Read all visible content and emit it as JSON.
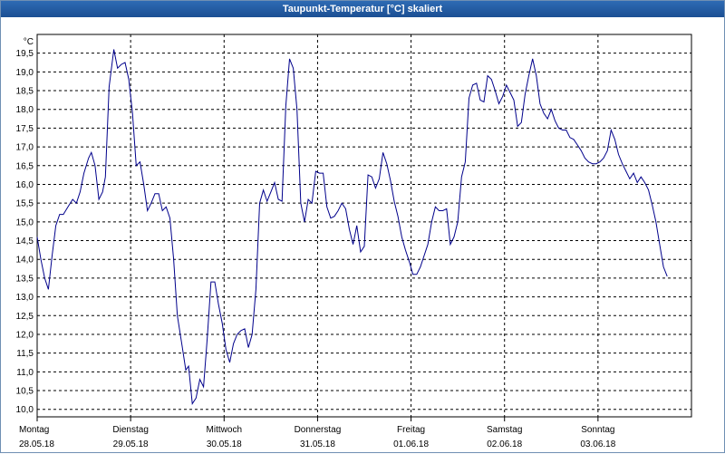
{
  "window": {
    "title": "Taupunkt-Temperatur [°C] skaliert"
  },
  "colors": {
    "line": "#00008b",
    "grid": "#000000",
    "axis": "#000000"
  },
  "chart_data": {
    "type": "line",
    "title": "Taupunkt-Temperatur [°C] skaliert",
    "unit": "°C",
    "ylim": [
      9.8,
      20.0
    ],
    "yticks": [
      "10,0",
      "10,5",
      "11,0",
      "11,5",
      "12,0",
      "12,5",
      "13,0",
      "13,5",
      "14,0",
      "14,5",
      "15,0",
      "15,5",
      "16,0",
      "16,5",
      "17,0",
      "17,5",
      "18,0",
      "18,5",
      "19,0",
      "19,5"
    ],
    "xlim": [
      0,
      7
    ],
    "x_days": [
      {
        "day": "Montag",
        "date": "28.05.18"
      },
      {
        "day": "Dienstag",
        "date": "29.05.18"
      },
      {
        "day": "Mittwoch",
        "date": "30.05.18"
      },
      {
        "day": "Donnerstag",
        "date": "31.05.18"
      },
      {
        "day": "Freitag",
        "date": "01.06.18"
      },
      {
        "day": "Samstag",
        "date": "02.06.18"
      },
      {
        "day": "Sonntag",
        "date": "03.06.18"
      }
    ],
    "grid": true,
    "series": [
      {
        "points": [
          [
            0.0,
            14.6
          ],
          [
            0.04,
            14.0
          ],
          [
            0.08,
            13.5
          ],
          [
            0.12,
            13.2
          ],
          [
            0.16,
            14.1
          ],
          [
            0.2,
            14.9
          ],
          [
            0.24,
            15.2
          ],
          [
            0.28,
            15.2
          ],
          [
            0.33,
            15.4
          ],
          [
            0.38,
            15.6
          ],
          [
            0.42,
            15.5
          ],
          [
            0.46,
            15.8
          ],
          [
            0.5,
            16.3
          ],
          [
            0.55,
            16.7
          ],
          [
            0.58,
            16.85
          ],
          [
            0.62,
            16.5
          ],
          [
            0.66,
            15.6
          ],
          [
            0.7,
            15.8
          ],
          [
            0.73,
            16.2
          ],
          [
            0.77,
            18.6
          ],
          [
            0.82,
            19.6
          ],
          [
            0.86,
            19.1
          ],
          [
            0.9,
            19.2
          ],
          [
            0.94,
            19.25
          ],
          [
            0.98,
            18.8
          ],
          [
            1.02,
            17.9
          ],
          [
            1.06,
            16.5
          ],
          [
            1.1,
            16.6
          ],
          [
            1.14,
            16.0
          ],
          [
            1.18,
            15.3
          ],
          [
            1.22,
            15.5
          ],
          [
            1.26,
            15.75
          ],
          [
            1.3,
            15.75
          ],
          [
            1.34,
            15.3
          ],
          [
            1.38,
            15.4
          ],
          [
            1.42,
            15.1
          ],
          [
            1.46,
            14.0
          ],
          [
            1.5,
            12.5
          ],
          [
            1.55,
            11.7
          ],
          [
            1.59,
            11.05
          ],
          [
            1.62,
            11.15
          ],
          [
            1.66,
            10.15
          ],
          [
            1.7,
            10.3
          ],
          [
            1.74,
            10.8
          ],
          [
            1.78,
            10.6
          ],
          [
            1.82,
            11.9
          ],
          [
            1.86,
            13.4
          ],
          [
            1.9,
            13.4
          ],
          [
            1.94,
            12.8
          ],
          [
            1.98,
            12.3
          ],
          [
            2.02,
            11.6
          ],
          [
            2.06,
            11.25
          ],
          [
            2.1,
            11.75
          ],
          [
            2.14,
            12.0
          ],
          [
            2.18,
            12.1
          ],
          [
            2.22,
            12.15
          ],
          [
            2.26,
            11.65
          ],
          [
            2.3,
            12.0
          ],
          [
            2.34,
            13.2
          ],
          [
            2.38,
            15.5
          ],
          [
            2.42,
            15.85
          ],
          [
            2.46,
            15.55
          ],
          [
            2.5,
            15.8
          ],
          [
            2.54,
            16.05
          ],
          [
            2.58,
            15.6
          ],
          [
            2.62,
            15.55
          ],
          [
            2.66,
            18.1
          ],
          [
            2.7,
            19.35
          ],
          [
            2.74,
            19.1
          ],
          [
            2.78,
            18.0
          ],
          [
            2.82,
            15.5
          ],
          [
            2.86,
            15.0
          ],
          [
            2.9,
            15.6
          ],
          [
            2.94,
            15.5
          ],
          [
            2.98,
            16.35
          ],
          [
            3.02,
            16.3
          ],
          [
            3.06,
            16.3
          ],
          [
            3.1,
            15.4
          ],
          [
            3.14,
            15.1
          ],
          [
            3.18,
            15.15
          ],
          [
            3.22,
            15.3
          ],
          [
            3.26,
            15.5
          ],
          [
            3.3,
            15.35
          ],
          [
            3.34,
            14.8
          ],
          [
            3.38,
            14.4
          ],
          [
            3.42,
            14.9
          ],
          [
            3.46,
            14.2
          ],
          [
            3.5,
            14.35
          ],
          [
            3.54,
            16.25
          ],
          [
            3.58,
            16.2
          ],
          [
            3.62,
            15.9
          ],
          [
            3.66,
            16.15
          ],
          [
            3.7,
            16.85
          ],
          [
            3.74,
            16.55
          ],
          [
            3.78,
            16.1
          ],
          [
            3.82,
            15.55
          ],
          [
            3.86,
            15.15
          ],
          [
            3.9,
            14.6
          ],
          [
            3.94,
            14.25
          ],
          [
            3.98,
            13.95
          ],
          [
            4.02,
            13.6
          ],
          [
            4.06,
            13.6
          ],
          [
            4.1,
            13.8
          ],
          [
            4.14,
            14.1
          ],
          [
            4.18,
            14.4
          ],
          [
            4.22,
            15.0
          ],
          [
            4.26,
            15.4
          ],
          [
            4.3,
            15.3
          ],
          [
            4.34,
            15.3
          ],
          [
            4.38,
            15.35
          ],
          [
            4.42,
            14.4
          ],
          [
            4.46,
            14.6
          ],
          [
            4.5,
            15.0
          ],
          [
            4.54,
            16.2
          ],
          [
            4.58,
            16.6
          ],
          [
            4.62,
            18.3
          ],
          [
            4.66,
            18.65
          ],
          [
            4.7,
            18.7
          ],
          [
            4.74,
            18.25
          ],
          [
            4.78,
            18.2
          ],
          [
            4.82,
            18.9
          ],
          [
            4.86,
            18.8
          ],
          [
            4.9,
            18.5
          ],
          [
            4.94,
            18.15
          ],
          [
            4.98,
            18.35
          ],
          [
            5.02,
            18.65
          ],
          [
            5.06,
            18.45
          ],
          [
            5.1,
            18.25
          ],
          [
            5.14,
            17.55
          ],
          [
            5.18,
            17.65
          ],
          [
            5.22,
            18.4
          ],
          [
            5.26,
            18.9
          ],
          [
            5.3,
            19.35
          ],
          [
            5.34,
            18.9
          ],
          [
            5.38,
            18.15
          ],
          [
            5.42,
            17.9
          ],
          [
            5.46,
            17.75
          ],
          [
            5.5,
            18.0
          ],
          [
            5.54,
            17.7
          ],
          [
            5.58,
            17.5
          ],
          [
            5.62,
            17.45
          ],
          [
            5.66,
            17.45
          ],
          [
            5.7,
            17.25
          ],
          [
            5.74,
            17.2
          ],
          [
            5.78,
            17.05
          ],
          [
            5.82,
            16.9
          ],
          [
            5.86,
            16.7
          ],
          [
            5.9,
            16.6
          ],
          [
            5.94,
            16.55
          ],
          [
            5.98,
            16.55
          ],
          [
            6.02,
            16.6
          ],
          [
            6.06,
            16.7
          ],
          [
            6.1,
            16.9
          ],
          [
            6.14,
            17.45
          ],
          [
            6.18,
            17.2
          ],
          [
            6.22,
            16.8
          ],
          [
            6.26,
            16.55
          ],
          [
            6.3,
            16.35
          ],
          [
            6.34,
            16.15
          ],
          [
            6.38,
            16.3
          ],
          [
            6.42,
            16.05
          ],
          [
            6.46,
            16.2
          ],
          [
            6.5,
            16.05
          ],
          [
            6.54,
            15.85
          ],
          [
            6.58,
            15.45
          ],
          [
            6.62,
            15.0
          ],
          [
            6.66,
            14.4
          ],
          [
            6.7,
            13.8
          ],
          [
            6.74,
            13.55
          ]
        ]
      }
    ]
  }
}
